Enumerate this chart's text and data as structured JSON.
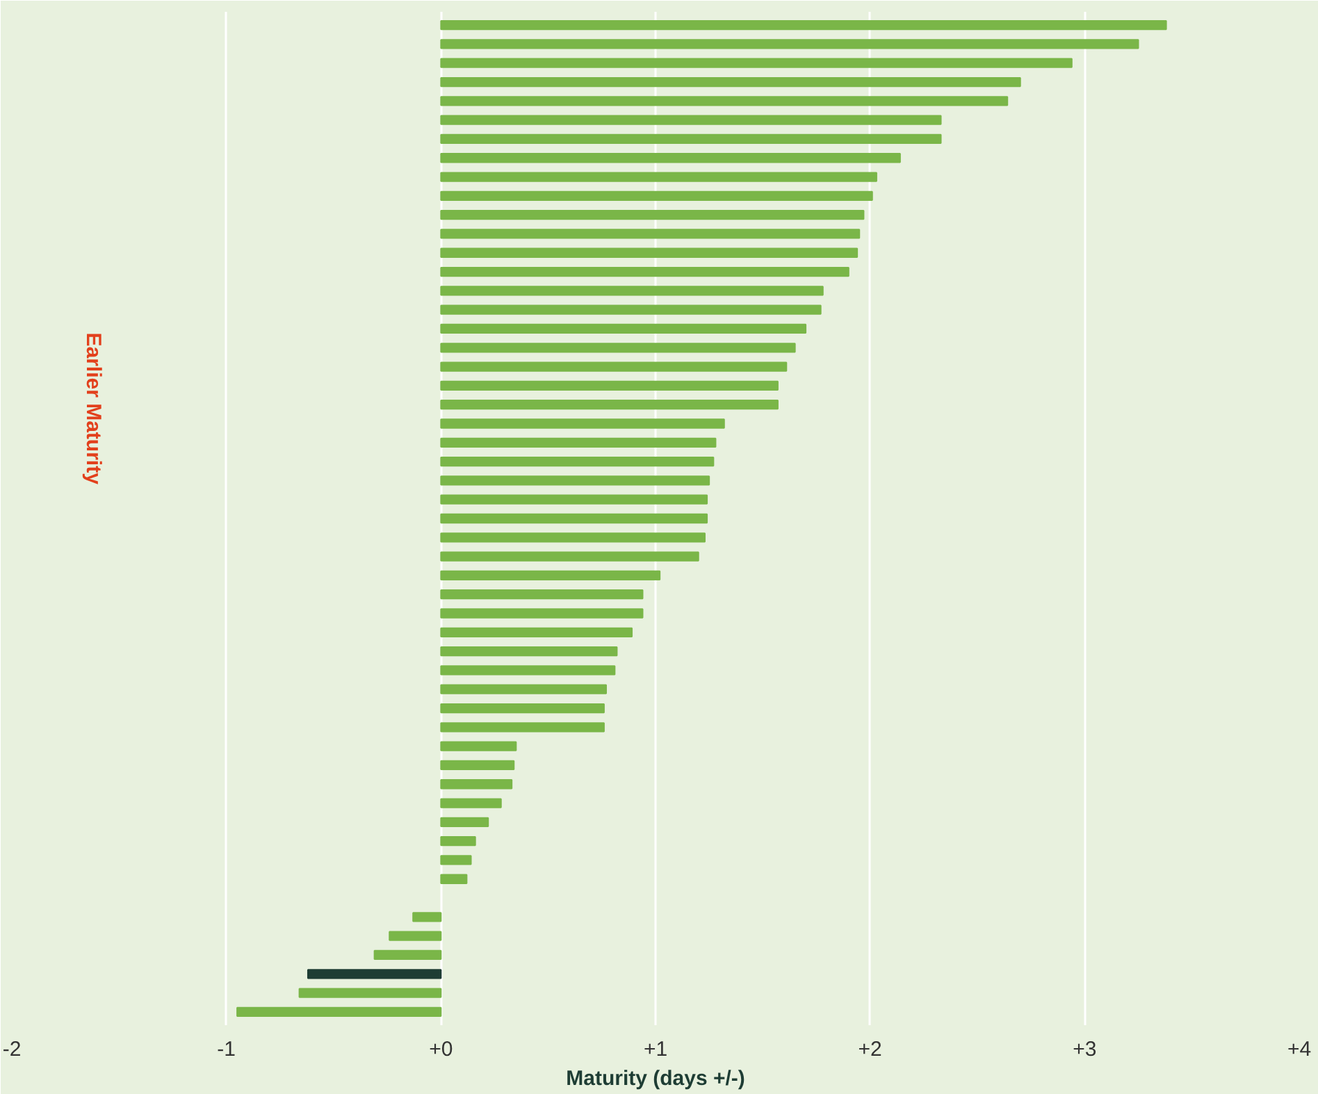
{
  "chart_data": {
    "type": "bar",
    "orientation": "horizontal",
    "xlabel": "Maturity (days +/-)",
    "categories": [
      null,
      null,
      null,
      null,
      null,
      null,
      null,
      null,
      null,
      null,
      null,
      null,
      null,
      null,
      null,
      null,
      null,
      null,
      null,
      null,
      null,
      null,
      null,
      null,
      null,
      null,
      null,
      null,
      null,
      null,
      null,
      null,
      null,
      null,
      null,
      null,
      null,
      null,
      null,
      null,
      null,
      null,
      null,
      null,
      null,
      null,
      null,
      null,
      null,
      null,
      null,
      null,
      null
    ],
    "values": [
      3.38,
      3.25,
      2.94,
      2.7,
      2.64,
      2.33,
      2.33,
      2.14,
      2.03,
      2.01,
      1.97,
      1.95,
      1.94,
      1.9,
      1.78,
      1.77,
      1.7,
      1.65,
      1.61,
      1.57,
      1.57,
      1.32,
      1.28,
      1.27,
      1.25,
      1.24,
      1.24,
      1.23,
      1.2,
      1.02,
      0.94,
      0.94,
      0.89,
      0.82,
      0.81,
      0.77,
      0.76,
      0.76,
      0.35,
      0.34,
      0.33,
      0.28,
      0.22,
      0.16,
      0.14,
      0.12,
      null,
      -0.13,
      -0.24,
      -0.31,
      -0.62,
      -0.66,
      -0.95
    ],
    "colors": [
      "#7ab648",
      "#7ab648",
      "#7ab648",
      "#7ab648",
      "#7ab648",
      "#7ab648",
      "#7ab648",
      "#7ab648",
      "#7ab648",
      "#7ab648",
      "#7ab648",
      "#7ab648",
      "#7ab648",
      "#7ab648",
      "#7ab648",
      "#7ab648",
      "#7ab648",
      "#7ab648",
      "#7ab648",
      "#7ab648",
      "#7ab648",
      "#7ab648",
      "#7ab648",
      "#7ab648",
      "#7ab648",
      "#7ab648",
      "#7ab648",
      "#7ab648",
      "#7ab648",
      "#7ab648",
      "#7ab648",
      "#7ab648",
      "#7ab648",
      "#7ab648",
      "#7ab648",
      "#7ab648",
      "#7ab648",
      "#7ab648",
      "#7ab648",
      "#7ab648",
      "#7ab648",
      "#7ab648",
      "#7ab648",
      "#7ab648",
      "#7ab648",
      "#7ab648",
      "#7ab648",
      "#7ab648",
      "#7ab648",
      "#7ab648",
      "#1e3d34",
      "#7ab648",
      "#7ab648"
    ],
    "xlim": [
      -2,
      4
    ],
    "xticks": [
      -2,
      -1,
      {
        "value": 0,
        "label": "+0"
      },
      {
        "value": 1,
        "label": "+1"
      },
      {
        "value": 2,
        "label": "+2"
      },
      {
        "value": 3,
        "label": "+3"
      },
      {
        "value": 4,
        "label": "+4"
      }
    ],
    "grid": "x",
    "tick_labels": "x",
    "annotations": [
      "Earlier Maturity"
    ]
  }
}
